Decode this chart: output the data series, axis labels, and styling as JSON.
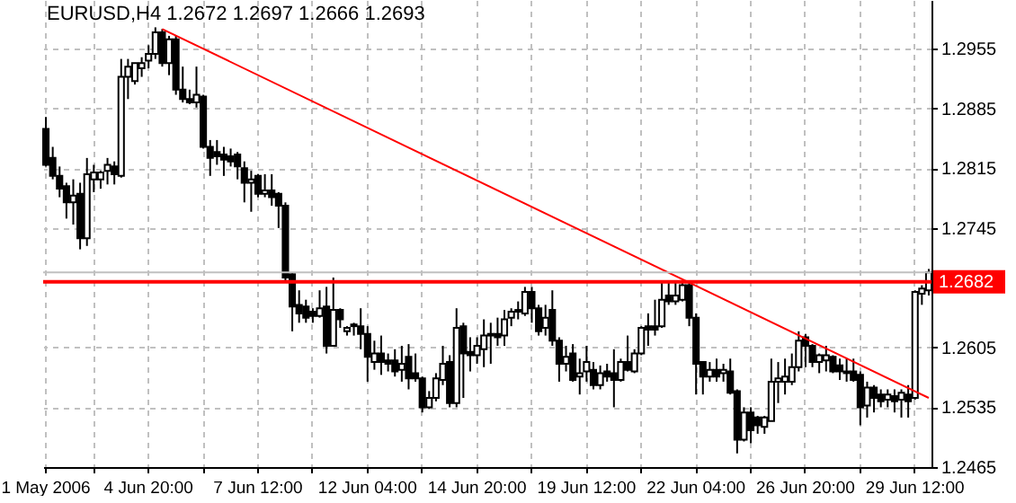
{
  "chart_data": {
    "type": "candlestick",
    "title": "EURUSD,H4  1.2672 1.2697 1.2666 1.2693",
    "categories": [
      "1 May 2006",
      null,
      null,
      null,
      null,
      null,
      null,
      null,
      null,
      null,
      null,
      null,
      null,
      null,
      null,
      "4 Jun 20:00",
      null,
      null,
      null,
      null,
      null,
      null,
      null,
      null,
      null,
      null,
      null,
      null,
      null,
      null,
      null,
      "7 Jun 12:00",
      null,
      null,
      null,
      null,
      null,
      null,
      null,
      null,
      null,
      null,
      null,
      null,
      null,
      null,
      null,
      "12 Jun 04:00",
      null,
      null,
      null,
      null,
      null,
      null,
      null,
      null,
      null,
      null,
      null,
      null,
      null,
      null,
      null,
      "14 Jun 20:00",
      null,
      null,
      null,
      null,
      null,
      null,
      null,
      null,
      null,
      null,
      null,
      null,
      null,
      null,
      null,
      "19 Jun 12:00",
      null,
      null,
      null,
      null,
      null,
      null,
      null,
      null,
      null,
      null,
      null,
      null,
      null,
      null,
      null,
      "22 Jun 04:00",
      null,
      null,
      null,
      null,
      null,
      null,
      null,
      null,
      null,
      null,
      null,
      null,
      null,
      null,
      null,
      "26 Jun 20:00",
      null,
      null,
      null,
      null,
      null,
      null,
      null,
      null,
      null,
      null,
      null,
      null,
      null,
      null,
      null,
      "29 Jun 12:00",
      null,
      null
    ],
    "ohlc": [
      [
        1.2861,
        1.2875,
        1.2817,
        1.2819
      ],
      [
        1.2827,
        1.284,
        1.2802,
        1.2806
      ],
      [
        1.2806,
        1.2817,
        1.2781,
        1.2791
      ],
      [
        1.2794,
        1.2798,
        1.2756,
        1.2775
      ],
      [
        1.2775,
        1.2802,
        1.2749,
        1.2783
      ],
      [
        1.2785,
        1.2798,
        1.272,
        1.2733
      ],
      [
        1.2733,
        1.2827,
        1.2724,
        1.2808
      ],
      [
        1.2802,
        1.2819,
        1.2787,
        1.281
      ],
      [
        1.2802,
        1.2812,
        1.2791,
        1.281
      ],
      [
        1.2812,
        1.2827,
        1.2796,
        1.2819
      ],
      [
        1.2817,
        1.2823,
        1.2796,
        1.2808
      ],
      [
        1.2806,
        1.2943,
        1.2804,
        1.2922
      ],
      [
        1.2922,
        1.2943,
        1.2896,
        1.2934
      ],
      [
        1.2917,
        1.2938,
        1.2913,
        1.2938
      ],
      [
        1.2932,
        1.2945,
        1.2922,
        1.2938
      ],
      [
        1.2941,
        1.2959,
        1.2932,
        1.2949
      ],
      [
        1.2949,
        1.298,
        1.2943,
        1.2974
      ],
      [
        1.2974,
        1.2978,
        1.2934,
        1.2938
      ],
      [
        1.2938,
        1.297,
        1.2924,
        1.2966
      ],
      [
        1.2966,
        1.297,
        1.2901,
        1.2907
      ],
      [
        1.2907,
        1.2934,
        1.2892,
        1.2896
      ],
      [
        1.2896,
        1.2907,
        1.289,
        1.2892
      ],
      [
        1.2892,
        1.2934,
        1.2886,
        1.2901
      ],
      [
        1.2899,
        1.2901,
        1.2838,
        1.284
      ],
      [
        1.284,
        1.2848,
        1.2806,
        1.2827
      ],
      [
        1.2834,
        1.2848,
        1.2819,
        1.2829
      ],
      [
        1.2831,
        1.284,
        1.2806,
        1.2825
      ],
      [
        1.2829,
        1.2838,
        1.2817,
        1.2823
      ],
      [
        1.2831,
        1.2834,
        1.2802,
        1.2817
      ],
      [
        1.2815,
        1.2823,
        1.2775,
        1.2798
      ],
      [
        1.2798,
        1.2812,
        1.2764,
        1.2802
      ],
      [
        1.2806,
        1.2808,
        1.2781,
        1.2785
      ],
      [
        1.2785,
        1.2808,
        1.2781,
        1.2789
      ],
      [
        1.2789,
        1.2808,
        1.2771,
        1.2781
      ],
      [
        1.2785,
        1.2787,
        1.2745,
        1.2771
      ],
      [
        1.2771,
        1.2775,
        1.2682,
        1.2687
      ],
      [
        1.2691,
        1.2693,
        1.2624,
        1.2653
      ],
      [
        1.2655,
        1.2672,
        1.2634,
        1.2645
      ],
      [
        1.2653,
        1.2661,
        1.2634,
        1.264
      ],
      [
        1.2647,
        1.2651,
        1.2634,
        1.2642
      ],
      [
        1.2642,
        1.2672,
        1.264,
        1.2651
      ],
      [
        1.2653,
        1.2676,
        1.2598,
        1.2607
      ],
      [
        1.2607,
        1.2687,
        1.2607,
        1.2649
      ],
      [
        1.2649,
        1.2651,
        1.2628,
        1.2638
      ],
      [
        1.2624,
        1.263,
        1.2619,
        1.2628
      ],
      [
        1.263,
        1.2634,
        1.2619,
        1.2632
      ],
      [
        1.263,
        1.2651,
        1.2603,
        1.2621
      ],
      [
        1.2621,
        1.263,
        1.2565,
        1.2594
      ],
      [
        1.2588,
        1.2613,
        1.2579,
        1.2598
      ],
      [
        1.2598,
        1.2619,
        1.2573,
        1.2588
      ],
      [
        1.259,
        1.2598,
        1.2577,
        1.2586
      ],
      [
        1.259,
        1.2603,
        1.2571,
        1.2577
      ],
      [
        1.2579,
        1.2607,
        1.2565,
        1.2586
      ],
      [
        1.2594,
        1.2609,
        1.2556,
        1.2569
      ],
      [
        1.2575,
        1.2598,
        1.2565,
        1.2569
      ],
      [
        1.2569,
        1.2571,
        1.2529,
        1.2535
      ],
      [
        1.2535,
        1.2554,
        1.2533,
        1.2546
      ],
      [
        1.2546,
        1.2575,
        1.2542,
        1.2569
      ],
      [
        1.2567,
        1.2607,
        1.2561,
        1.2586
      ],
      [
        1.2588,
        1.2596,
        1.2535,
        1.254
      ],
      [
        1.254,
        1.2651,
        1.2535,
        1.2628
      ],
      [
        1.263,
        1.2634,
        1.2546,
        1.2598
      ],
      [
        1.26,
        1.2617,
        1.2577,
        1.2596
      ],
      [
        1.2596,
        1.2617,
        1.2586,
        1.2607
      ],
      [
        1.2603,
        1.2638,
        1.2582,
        1.2619
      ],
      [
        1.2621,
        1.2634,
        1.2586,
        1.2619
      ],
      [
        1.2621,
        1.264,
        1.2607,
        1.2617
      ],
      [
        1.2619,
        1.2649,
        1.2607,
        1.2638
      ],
      [
        1.264,
        1.2651,
        1.263,
        1.2647
      ],
      [
        1.2649,
        1.2659,
        1.2638,
        1.2647
      ],
      [
        1.2645,
        1.2676,
        1.2642,
        1.267
      ],
      [
        1.267,
        1.2676,
        1.2634,
        1.2651
      ],
      [
        1.2651,
        1.2655,
        1.2619,
        1.2624
      ],
      [
        1.2628,
        1.2655,
        1.2619,
        1.264
      ],
      [
        1.2649,
        1.2672,
        1.2607,
        1.2613
      ],
      [
        1.2613,
        1.2617,
        1.2565,
        1.2586
      ],
      [
        1.2586,
        1.2607,
        1.2577,
        1.2594
      ],
      [
        1.2598,
        1.2609,
        1.2565,
        1.2567
      ],
      [
        1.2571,
        1.2592,
        1.255,
        1.2575
      ],
      [
        1.2577,
        1.2607,
        1.2565,
        1.2588
      ],
      [
        1.2579,
        1.2588,
        1.2556,
        1.2561
      ],
      [
        1.2561,
        1.2584,
        1.2556,
        1.2575
      ],
      [
        1.2577,
        1.2586,
        1.2565,
        1.2571
      ],
      [
        1.2575,
        1.2603,
        1.2535,
        1.2567
      ],
      [
        1.2567,
        1.2592,
        1.2565,
        1.2588
      ],
      [
        1.2588,
        1.2619,
        1.2577,
        1.2579
      ],
      [
        1.2577,
        1.2603,
        1.2575,
        1.2598
      ],
      [
        1.2598,
        1.263,
        1.2596,
        1.2628
      ],
      [
        1.263,
        1.2645,
        1.2607,
        1.2626
      ],
      [
        1.263,
        1.2661,
        1.2619,
        1.2626
      ],
      [
        1.263,
        1.2682,
        1.2628,
        1.2661
      ],
      [
        1.2666,
        1.2682,
        1.2655,
        1.2659
      ],
      [
        1.2659,
        1.2682,
        1.2655,
        1.2666
      ],
      [
        1.2661,
        1.2682,
        1.2659,
        1.2678
      ],
      [
        1.2678,
        1.2682,
        1.263,
        1.264
      ],
      [
        1.264,
        1.2645,
        1.255,
        1.2586
      ],
      [
        1.2588,
        1.2588,
        1.255,
        1.2571
      ],
      [
        1.2571,
        1.2588,
        1.2565,
        1.2579
      ],
      [
        1.2579,
        1.2592,
        1.2565,
        1.2571
      ],
      [
        1.2575,
        1.2586,
        1.2565,
        1.2579
      ],
      [
        1.2577,
        1.2592,
        1.255,
        1.2552
      ],
      [
        1.2554,
        1.2556,
        1.2481,
        1.2497
      ],
      [
        1.2497,
        1.2535,
        1.2495,
        1.2529
      ],
      [
        1.2529,
        1.2535,
        1.2493,
        1.2508
      ],
      [
        1.2523,
        1.2525,
        1.2504,
        1.2514
      ],
      [
        1.2512,
        1.2525,
        1.2504,
        1.2523
      ],
      [
        1.2519,
        1.2592,
        1.2519,
        1.2565
      ],
      [
        1.2565,
        1.2588,
        1.254,
        1.2569
      ],
      [
        1.2565,
        1.2592,
        1.255,
        1.2571
      ],
      [
        1.2565,
        1.2598,
        1.2561,
        1.2582
      ],
      [
        1.2582,
        1.2624,
        1.2577,
        1.2613
      ],
      [
        1.2617,
        1.2621,
        1.2582,
        1.2607
      ],
      [
        1.2607,
        1.2609,
        1.2582,
        1.2588
      ],
      [
        1.2588,
        1.2598,
        1.2575,
        1.2596
      ],
      [
        1.259,
        1.2607,
        1.2577,
        1.2596
      ],
      [
        1.2594,
        1.2596,
        1.2575,
        1.2577
      ],
      [
        1.2584,
        1.2592,
        1.2567,
        1.2577
      ],
      [
        1.2577,
        1.2592,
        1.2565,
        1.2575
      ],
      [
        1.2577,
        1.2592,
        1.2565,
        1.2567
      ],
      [
        1.2573,
        1.2577,
        1.2514,
        1.2535
      ],
      [
        1.2537,
        1.2565,
        1.2523,
        1.2558
      ],
      [
        1.2558,
        1.2561,
        1.2529,
        1.2546
      ],
      [
        1.255,
        1.2556,
        1.2535,
        1.2542
      ],
      [
        1.2544,
        1.2556,
        1.2535,
        1.255
      ],
      [
        1.2548,
        1.2556,
        1.2529,
        1.2542
      ],
      [
        1.2544,
        1.2556,
        1.2523,
        1.2552
      ],
      [
        1.255,
        1.2561,
        1.2523,
        1.2542
      ],
      [
        1.2546,
        1.2672,
        1.2544,
        1.267
      ],
      [
        1.2668,
        1.2678,
        1.2655,
        1.2674
      ],
      [
        1.2672,
        1.2697,
        1.2666,
        1.2693
      ]
    ],
    "series": [
      {
        "type": "line",
        "color": "#ff0000",
        "values": [
          null,
          null,
          null,
          null,
          null,
          null,
          null,
          null,
          null,
          null,
          null,
          null,
          null,
          null,
          null,
          null,
          null,
          1.2978,
          null,
          null,
          null,
          null,
          null,
          null,
          null,
          null,
          null,
          null,
          null,
          null,
          null,
          null,
          null,
          null,
          null,
          null,
          null,
          null,
          null,
          null,
          null,
          null,
          null,
          null,
          null,
          null,
          null,
          null,
          null,
          null,
          null,
          null,
          null,
          null,
          null,
          null,
          null,
          null,
          null,
          null,
          null,
          null,
          null,
          null,
          null,
          null,
          null,
          null,
          null,
          null,
          null,
          null,
          null,
          null,
          null,
          null,
          null,
          null,
          null,
          null,
          null,
          null,
          null,
          null,
          null,
          null,
          null,
          null,
          null,
          null,
          null,
          null,
          null,
          null,
          null,
          null,
          null,
          null,
          null,
          null,
          null,
          null,
          null,
          null,
          null,
          null,
          null,
          null,
          null,
          null,
          null,
          null,
          null,
          null,
          null,
          null,
          null,
          null,
          null,
          null,
          null,
          null,
          null,
          null,
          null,
          null,
          null,
          null,
          null,
          1.2546
        ]
      }
    ],
    "ref_lines": [
      {
        "axis": "y",
        "value": 1.2693,
        "color": "#c0c0c0"
      },
      {
        "axis": "y",
        "value": 1.2682,
        "label": "1.2682",
        "color": "#ff0000"
      }
    ],
    "ylim": [
      1.2465,
      1.3012
    ],
    "yticks": [
      1.2955,
      1.2885,
      1.2815,
      1.2745,
      1.2605,
      1.2535,
      1.2465
    ],
    "grid": true
  }
}
